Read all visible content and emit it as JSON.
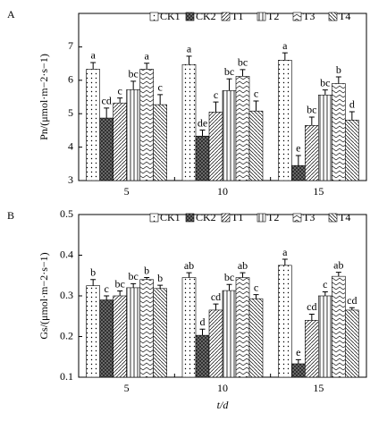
{
  "chart_data": [
    {
      "type": "bar",
      "panel": "A",
      "ylabel": "Pn/(μmol·m−2·s−1)",
      "legend": "top-right",
      "categories": [
        "5",
        "10",
        "15"
      ],
      "ylim": [
        3,
        8
      ],
      "yticks": [
        3,
        4,
        5,
        6,
        7
      ],
      "series": [
        {
          "name": "CK1",
          "pattern": "dots",
          "values": [
            6.33,
            6.47,
            6.6
          ],
          "errors": [
            0.2,
            0.25,
            0.22
          ],
          "letters": [
            "a",
            "a",
            "a"
          ]
        },
        {
          "name": "CK2",
          "pattern": "cross",
          "values": [
            4.87,
            4.33,
            3.45
          ],
          "errors": [
            0.3,
            0.18,
            0.3
          ],
          "letters": [
            "cd",
            "de",
            "e"
          ]
        },
        {
          "name": "T1",
          "pattern": "diag",
          "values": [
            5.32,
            5.05,
            4.65
          ],
          "errors": [
            0.15,
            0.3,
            0.25
          ],
          "letters": [
            "c",
            "c",
            "bc"
          ]
        },
        {
          "name": "T2",
          "pattern": "vert",
          "values": [
            5.72,
            5.69,
            5.56
          ],
          "errors": [
            0.25,
            0.35,
            0.15
          ],
          "letters": [
            "bc",
            "bc",
            "bc"
          ]
        },
        {
          "name": "T3",
          "pattern": "zigzag",
          "values": [
            6.33,
            6.12,
            5.9
          ],
          "errors": [
            0.18,
            0.2,
            0.2
          ],
          "letters": [
            "a",
            "bc",
            "b"
          ]
        },
        {
          "name": "T4",
          "pattern": "hatch",
          "values": [
            5.27,
            5.08,
            4.81
          ],
          "errors": [
            0.3,
            0.3,
            0.25
          ],
          "letters": [
            "c",
            "c",
            "d"
          ]
        }
      ]
    },
    {
      "type": "bar",
      "panel": "B",
      "ylabel": "Gs/(μmol·m−2·s−1)",
      "xlabel": "t/d",
      "legend": "top-right",
      "categories": [
        "5",
        "10",
        "15"
      ],
      "ylim": [
        0.1,
        0.5
      ],
      "yticks": [
        0.1,
        0.2,
        0.3,
        0.4,
        0.5
      ],
      "series": [
        {
          "name": "CK1",
          "pattern": "dots",
          "values": [
            0.325,
            0.345,
            0.375
          ],
          "errors": [
            0.015,
            0.012,
            0.015
          ],
          "letters": [
            "b",
            "ab",
            "a"
          ]
        },
        {
          "name": "CK2",
          "pattern": "cross",
          "values": [
            0.29,
            0.203,
            0.133
          ],
          "errors": [
            0.01,
            0.015,
            0.01
          ],
          "letters": [
            "c",
            "d",
            "e"
          ]
        },
        {
          "name": "T1",
          "pattern": "diag",
          "values": [
            0.3,
            0.265,
            0.24
          ],
          "errors": [
            0.012,
            0.015,
            0.015
          ],
          "letters": [
            "bc",
            "cd",
            "cd"
          ]
        },
        {
          "name": "T2",
          "pattern": "vert",
          "values": [
            0.32,
            0.313,
            0.3
          ],
          "errors": [
            0.01,
            0.015,
            0.01
          ],
          "letters": [
            "bc",
            "bc",
            "c"
          ]
        },
        {
          "name": "T3",
          "pattern": "zigzag",
          "values": [
            0.34,
            0.345,
            0.348
          ],
          "errors": [
            0.005,
            0.012,
            0.01
          ],
          "letters": [
            "b",
            "ab",
            "ab"
          ]
        },
        {
          "name": "T4",
          "pattern": "hatch",
          "values": [
            0.318,
            0.293,
            0.265
          ],
          "errors": [
            0.008,
            0.01,
            0.006
          ],
          "letters": [
            "b",
            "c",
            "cd"
          ]
        }
      ]
    }
  ]
}
